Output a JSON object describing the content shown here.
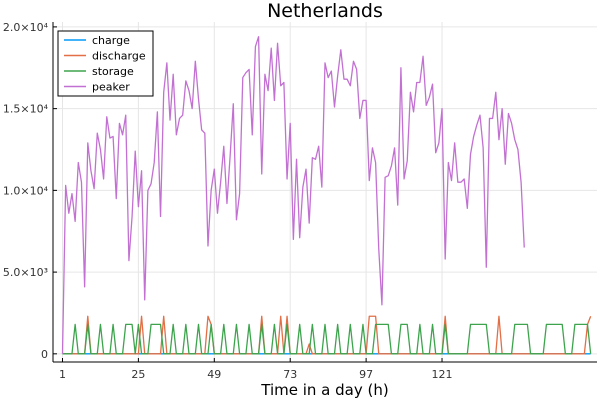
{
  "chart_data": {
    "type": "line",
    "title": "Netherlands",
    "xlabel": "Time in a day (h)",
    "ylabel": "",
    "xlim": [
      -2,
      170
    ],
    "ylim": [
      -500,
      20300
    ],
    "xticks": [
      1,
      25,
      49,
      73,
      97,
      121
    ],
    "yticks": [
      0,
      5000,
      10000,
      15000,
      20000
    ],
    "ytick_labels": [
      "0",
      "5.0×10³",
      "1.0×10⁴",
      "1.5×10⁴",
      "2.0×10⁴"
    ],
    "grid": true,
    "legend_position": "top-left",
    "series": [
      {
        "name": "charge",
        "color": "#009af9",
        "points": [
          [
            1,
            0
          ],
          [
            168,
            0
          ]
        ]
      },
      {
        "name": "discharge",
        "color": "#e26f46",
        "points": [
          [
            1,
            0
          ],
          [
            8,
            0
          ],
          [
            9,
            2300
          ],
          [
            10,
            0
          ],
          [
            25,
            0
          ],
          [
            26,
            2300
          ],
          [
            27,
            0
          ],
          [
            32,
            0
          ],
          [
            33,
            2300
          ],
          [
            34,
            0
          ],
          [
            46,
            0
          ],
          [
            47,
            2300
          ],
          [
            48,
            1800
          ],
          [
            49,
            0
          ],
          [
            63,
            0
          ],
          [
            64,
            2300
          ],
          [
            65,
            0
          ],
          [
            69,
            0
          ],
          [
            70,
            2300
          ],
          [
            71,
            0
          ],
          [
            72,
            2300
          ],
          [
            73,
            0
          ],
          [
            78,
            0
          ],
          [
            79,
            600
          ],
          [
            80,
            0
          ],
          [
            97,
            0
          ],
          [
            98,
            2300
          ],
          [
            100,
            2300
          ],
          [
            101,
            0
          ],
          [
            121,
            0
          ],
          [
            122,
            2300
          ],
          [
            123,
            0
          ],
          [
            138,
            0
          ],
          [
            139,
            2300
          ],
          [
            140,
            0
          ],
          [
            166,
            0
          ],
          [
            167,
            1800
          ],
          [
            168,
            2300
          ]
        ]
      },
      {
        "name": "storage",
        "color": "#3da44d",
        "points": [
          [
            1,
            0
          ],
          [
            4,
            0
          ],
          [
            5,
            1800
          ],
          [
            6,
            0
          ],
          [
            8,
            0
          ],
          [
            9,
            1800
          ],
          [
            10,
            0
          ],
          [
            12,
            0
          ],
          [
            13,
            1800
          ],
          [
            14,
            0
          ],
          [
            16,
            0
          ],
          [
            17,
            1800
          ],
          [
            18,
            0
          ],
          [
            20,
            0
          ],
          [
            21,
            1800
          ],
          [
            23,
            1800
          ],
          [
            24,
            0
          ],
          [
            25,
            1800
          ],
          [
            26,
            0
          ],
          [
            28,
            0
          ],
          [
            29,
            1800
          ],
          [
            32,
            1800
          ],
          [
            33,
            0
          ],
          [
            35,
            0
          ],
          [
            36,
            1800
          ],
          [
            37,
            0
          ],
          [
            39,
            0
          ],
          [
            40,
            1800
          ],
          [
            41,
            0
          ],
          [
            43,
            0
          ],
          [
            44,
            1800
          ],
          [
            45,
            0
          ],
          [
            47,
            0
          ],
          [
            48,
            1800
          ],
          [
            49,
            0
          ],
          [
            51,
            0
          ],
          [
            52,
            1800
          ],
          [
            53,
            0
          ],
          [
            55,
            0
          ],
          [
            56,
            1800
          ],
          [
            57,
            0
          ],
          [
            59,
            0
          ],
          [
            60,
            1800
          ],
          [
            61,
            0
          ],
          [
            63,
            0
          ],
          [
            64,
            1800
          ],
          [
            65,
            0
          ],
          [
            67,
            0
          ],
          [
            68,
            1800
          ],
          [
            69,
            0
          ],
          [
            71,
            0
          ],
          [
            72,
            1800
          ],
          [
            73,
            0
          ],
          [
            75,
            0
          ],
          [
            76,
            1800
          ],
          [
            77,
            0
          ],
          [
            79,
            0
          ],
          [
            80,
            1800
          ],
          [
            81,
            0
          ],
          [
            83,
            0
          ],
          [
            84,
            1800
          ],
          [
            85,
            0
          ],
          [
            87,
            0
          ],
          [
            88,
            1800
          ],
          [
            89,
            0
          ],
          [
            91,
            0
          ],
          [
            92,
            1800
          ],
          [
            93,
            0
          ],
          [
            95,
            0
          ],
          [
            96,
            1800
          ],
          [
            97,
            0
          ],
          [
            99,
            0
          ],
          [
            100,
            1800
          ],
          [
            104,
            1800
          ],
          [
            105,
            0
          ],
          [
            107,
            0
          ],
          [
            108,
            1800
          ],
          [
            110,
            1800
          ],
          [
            111,
            0
          ],
          [
            113,
            0
          ],
          [
            114,
            1800
          ],
          [
            115,
            0
          ],
          [
            117,
            0
          ],
          [
            118,
            1800
          ],
          [
            119,
            0
          ],
          [
            121,
            0
          ],
          [
            122,
            1800
          ],
          [
            123,
            0
          ],
          [
            129,
            0
          ],
          [
            130,
            1800
          ],
          [
            135,
            1800
          ],
          [
            136,
            0
          ],
          [
            143,
            0
          ],
          [
            144,
            1800
          ],
          [
            148,
            1800
          ],
          [
            149,
            0
          ],
          [
            153,
            0
          ],
          [
            154,
            1800
          ],
          [
            159,
            1800
          ],
          [
            160,
            0
          ],
          [
            162,
            0
          ],
          [
            163,
            1800
          ],
          [
            167,
            1800
          ],
          [
            168,
            0
          ]
        ]
      },
      {
        "name": "peaker",
        "color": "#c271d2",
        "points": [
          [
            1,
            0
          ],
          [
            2,
            10300
          ],
          [
            3,
            8600
          ],
          [
            4,
            9800
          ],
          [
            5,
            8100
          ],
          [
            6,
            11700
          ],
          [
            7,
            10500
          ],
          [
            8,
            4100
          ],
          [
            9,
            12900
          ],
          [
            10,
            11200
          ],
          [
            11,
            10100
          ],
          [
            12,
            13500
          ],
          [
            13,
            12500
          ],
          [
            14,
            10700
          ],
          [
            15,
            14500
          ],
          [
            16,
            13200
          ],
          [
            17,
            13300
          ],
          [
            18,
            9500
          ],
          [
            19,
            14100
          ],
          [
            20,
            13400
          ],
          [
            21,
            14600
          ],
          [
            22,
            5700
          ],
          [
            23,
            8400
          ],
          [
            24,
            12400
          ],
          [
            25,
            9000
          ],
          [
            26,
            11200
          ],
          [
            27,
            3300
          ],
          [
            28,
            10000
          ],
          [
            29,
            10400
          ],
          [
            30,
            11700
          ],
          [
            31,
            14800
          ],
          [
            32,
            8400
          ],
          [
            33,
            16000
          ],
          [
            34,
            17800
          ],
          [
            35,
            14300
          ],
          [
            36,
            17100
          ],
          [
            37,
            13400
          ],
          [
            38,
            14400
          ],
          [
            39,
            14600
          ],
          [
            40,
            16700
          ],
          [
            41,
            16100
          ],
          [
            42,
            15000
          ],
          [
            43,
            17900
          ],
          [
            44,
            15600
          ],
          [
            45,
            13700
          ],
          [
            46,
            13500
          ],
          [
            47,
            6600
          ],
          [
            48,
            10000
          ],
          [
            49,
            11300
          ],
          [
            50,
            8600
          ],
          [
            51,
            10500
          ],
          [
            52,
            12700
          ],
          [
            53,
            9200
          ],
          [
            54,
            12100
          ],
          [
            55,
            15300
          ],
          [
            56,
            8200
          ],
          [
            57,
            9800
          ],
          [
            58,
            16900
          ],
          [
            59,
            17200
          ],
          [
            60,
            17400
          ],
          [
            61,
            13400
          ],
          [
            62,
            18800
          ],
          [
            63,
            19400
          ],
          [
            64,
            11000
          ],
          [
            65,
            17100
          ],
          [
            66,
            16100
          ],
          [
            67,
            18700
          ],
          [
            68,
            15500
          ],
          [
            69,
            19000
          ],
          [
            70,
            16400
          ],
          [
            71,
            16600
          ],
          [
            72,
            10700
          ],
          [
            73,
            14100
          ],
          [
            74,
            7000
          ],
          [
            75,
            11900
          ],
          [
            76,
            7100
          ],
          [
            77,
            10200
          ],
          [
            78,
            11300
          ],
          [
            79,
            8000
          ],
          [
            80,
            12000
          ],
          [
            81,
            11900
          ],
          [
            82,
            12700
          ],
          [
            83,
            10200
          ],
          [
            84,
            17800
          ],
          [
            85,
            16900
          ],
          [
            86,
            17300
          ],
          [
            87,
            15100
          ],
          [
            88,
            17000
          ],
          [
            89,
            18600
          ],
          [
            90,
            16800
          ],
          [
            91,
            16800
          ],
          [
            92,
            16400
          ],
          [
            93,
            17900
          ],
          [
            94,
            17400
          ],
          [
            95,
            14400
          ],
          [
            96,
            15500
          ],
          [
            97,
            15500
          ],
          [
            98,
            10600
          ],
          [
            99,
            12600
          ],
          [
            100,
            11700
          ],
          [
            101,
            6400
          ],
          [
            102,
            3000
          ],
          [
            103,
            10800
          ],
          [
            104,
            10900
          ],
          [
            105,
            11500
          ],
          [
            106,
            12600
          ],
          [
            107,
            9100
          ],
          [
            108,
            17500
          ],
          [
            109,
            10700
          ],
          [
            110,
            11800
          ],
          [
            111,
            16000
          ],
          [
            112,
            14800
          ],
          [
            113,
            16600
          ],
          [
            114,
            16600
          ],
          [
            115,
            18200
          ],
          [
            116,
            15200
          ],
          [
            117,
            15700
          ],
          [
            118,
            16500
          ],
          [
            119,
            12300
          ],
          [
            120,
            12900
          ],
          [
            121,
            15000
          ],
          [
            122,
            5800
          ],
          [
            123,
            11700
          ],
          [
            124,
            10600
          ],
          [
            125,
            12900
          ],
          [
            126,
            10500
          ],
          [
            127,
            10500
          ],
          [
            128,
            10700
          ],
          [
            129,
            8900
          ],
          [
            130,
            12200
          ],
          [
            131,
            13300
          ],
          [
            132,
            14000
          ],
          [
            133,
            14600
          ],
          [
            134,
            12600
          ],
          [
            135,
            5300
          ],
          [
            136,
            14400
          ],
          [
            137,
            14400
          ],
          [
            138,
            16000
          ],
          [
            139,
            13100
          ],
          [
            140,
            15000
          ],
          [
            141,
            11600
          ],
          [
            142,
            14700
          ],
          [
            143,
            14100
          ],
          [
            144,
            13100
          ],
          [
            145,
            12500
          ],
          [
            146,
            10500
          ],
          [
            147,
            6500
          ]
        ]
      }
    ]
  }
}
